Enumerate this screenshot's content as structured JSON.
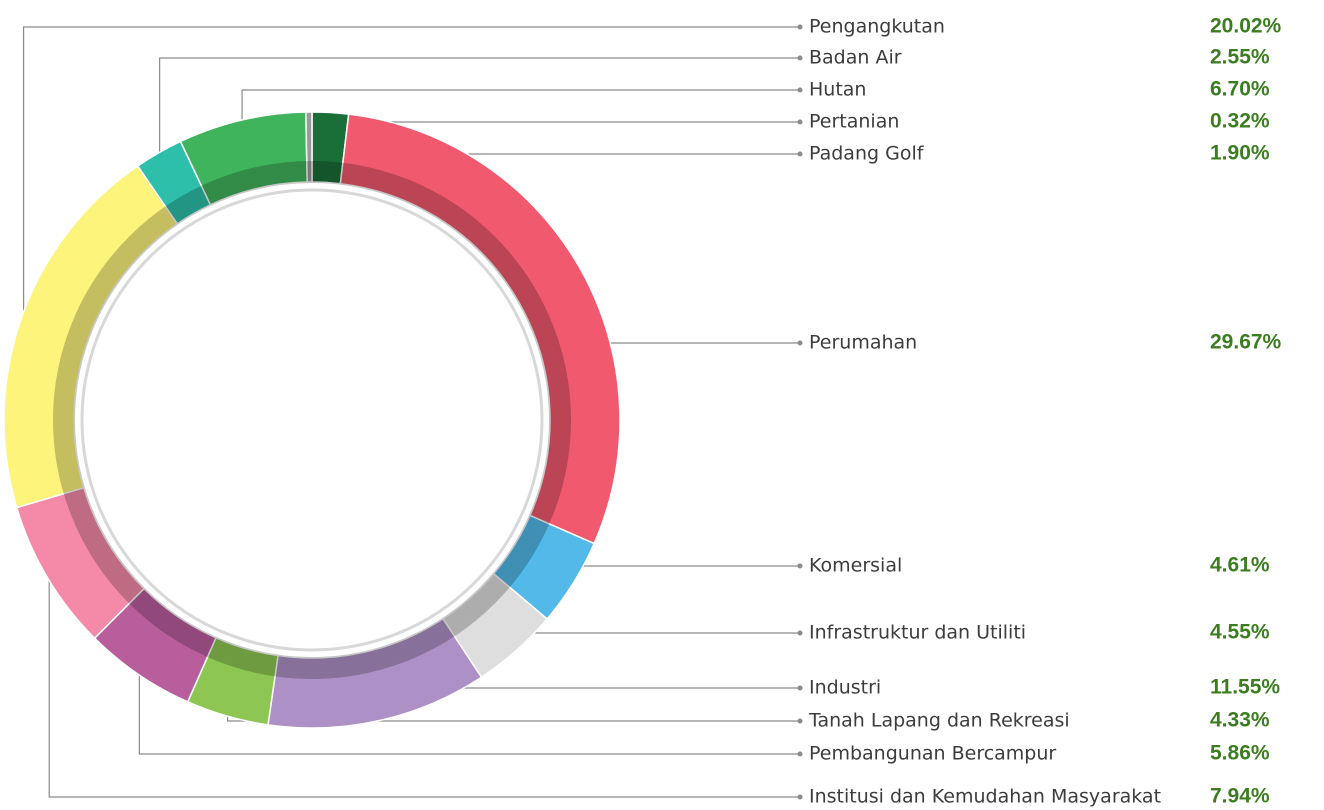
{
  "chart_data": {
    "type": "donut",
    "categories": [
      "Padang Golf",
      "Perumahan",
      "Komersial",
      "Infrastruktur dan Utiliti",
      "Industri",
      "Tanah Lapang dan Rekreasi",
      "Pembangunan Bercampur",
      "Institusi dan Kemudahan Masyarakat",
      "Pengangkutan",
      "Badan Air",
      "Hutan",
      "Pertanian"
    ],
    "values": [
      1.9,
      29.67,
      4.61,
      4.55,
      11.55,
      4.33,
      5.86,
      7.94,
      20.02,
      2.55,
      6.7,
      0.32
    ],
    "value_labels": [
      "1.90%",
      "29.67%",
      "4.61%",
      "4.55%",
      "11.55%",
      "4.33%",
      "5.86%",
      "7.94%",
      "20.02%",
      "2.55%",
      "6.70%",
      "0.32%"
    ],
    "colors": [
      "#1a6e38",
      "#f0596e",
      "#52b9e9",
      "#dedede",
      "#ad90c5",
      "#8dc653",
      "#b95e9d",
      "#f48aa8",
      "#fdf47b",
      "#2dbfa9",
      "#40b45c",
      "#9a9a9a"
    ]
  }
}
